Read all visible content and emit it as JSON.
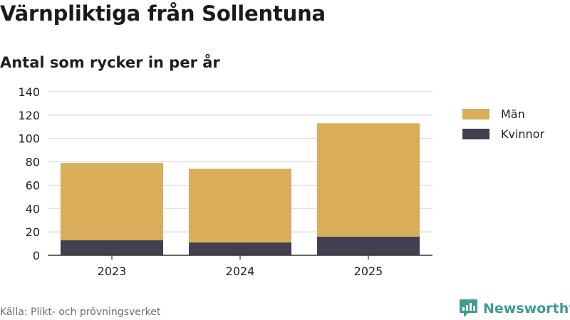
{
  "colors": {
    "man": "#d9ad59",
    "kvinnor": "#423f4f",
    "grid": "#dcdcdc",
    "axis": "#333333",
    "brand": "#3f9c93"
  },
  "header": {
    "title": "Värnpliktiga från Sollentuna",
    "subtitle": "Antal som rycker in per år"
  },
  "legend": {
    "items": [
      "Män",
      "Kvinnor"
    ]
  },
  "footer": {
    "source": "Källa: Plikt- och prövningsverket",
    "brand": "Newsworthy",
    "brand_icon": "bar-chart-badge-icon"
  },
  "chart_data": {
    "type": "bar",
    "stacked": true,
    "categories": [
      "2023",
      "2024",
      "2025"
    ],
    "series": [
      {
        "name": "Kvinnor",
        "values": [
          13,
          11,
          16
        ]
      },
      {
        "name": "Män",
        "values": [
          66,
          63,
          97
        ]
      }
    ],
    "totals": [
      79,
      74,
      113
    ],
    "title": "Värnpliktiga från Sollentuna",
    "subtitle": "Antal som rycker in per år",
    "xlabel": "",
    "ylabel": "",
    "ylim": [
      0,
      140
    ],
    "yticks": [
      0,
      20,
      40,
      60,
      80,
      100,
      120,
      140
    ],
    "grid": true,
    "legend_position": "right"
  }
}
